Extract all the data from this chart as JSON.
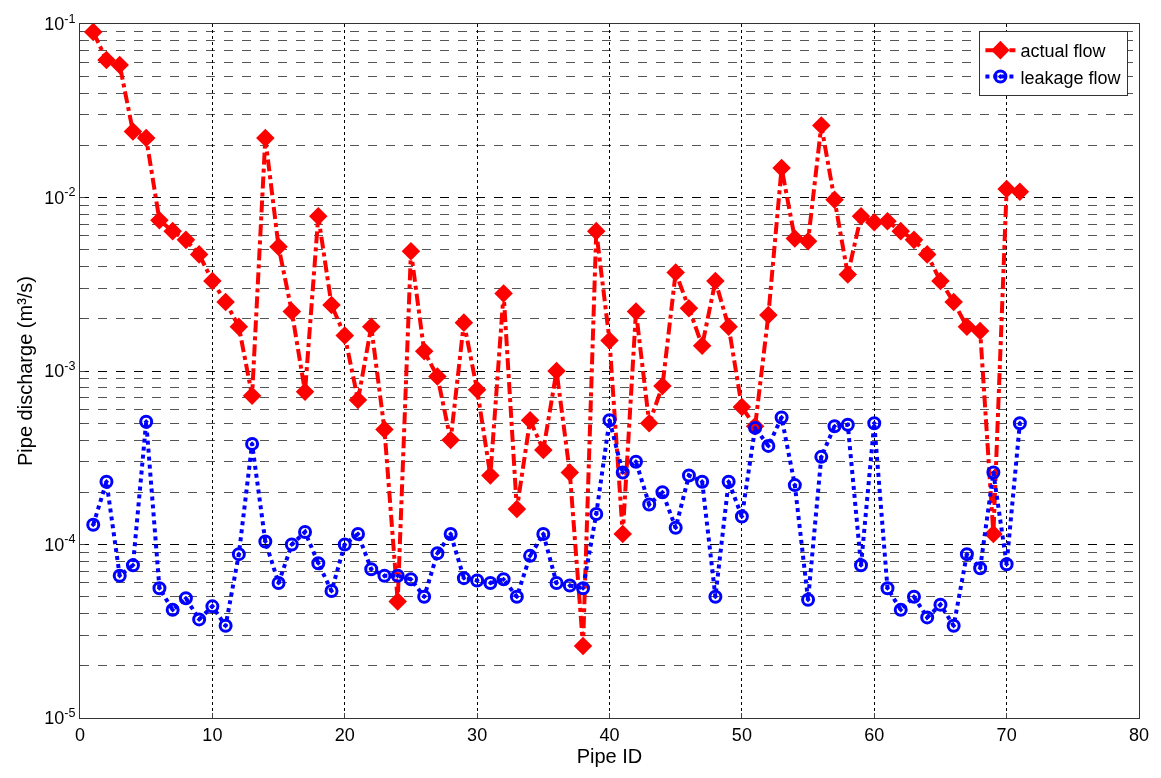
{
  "chart_data": {
    "type": "line",
    "xlabel": "Pipe ID",
    "ylabel": "Pipe discharge (m³/s)",
    "x": [
      1,
      2,
      3,
      4,
      5,
      6,
      7,
      8,
      9,
      10,
      11,
      12,
      13,
      14,
      15,
      16,
      17,
      18,
      19,
      20,
      21,
      22,
      23,
      24,
      25,
      26,
      27,
      28,
      29,
      30,
      31,
      32,
      33,
      34,
      35,
      36,
      37,
      38,
      39,
      40,
      41,
      42,
      43,
      44,
      45,
      46,
      47,
      48,
      49,
      50,
      51,
      52,
      53,
      54,
      55,
      56,
      57,
      58,
      59,
      60,
      61,
      62,
      63,
      64,
      65,
      66,
      67,
      68,
      69,
      70,
      71
    ],
    "series": [
      {
        "name": "actual flow",
        "color": "#ff0000",
        "marker": "diamond",
        "line_style": "dashed",
        "values": [
          0.09,
          0.062,
          0.058,
          0.024,
          0.022,
          0.0074,
          0.0064,
          0.0057,
          0.0047,
          0.0033,
          0.0025,
          0.0018,
          0.00072,
          0.022,
          0.0052,
          0.0022,
          0.00076,
          0.0078,
          0.0024,
          0.0016,
          0.00068,
          0.0018,
          0.00046,
          4.7e-05,
          0.0049,
          0.0013,
          0.00093,
          0.0004,
          0.0019,
          0.00078,
          0.00025,
          0.0028,
          0.00016,
          0.00052,
          0.00035,
          0.001,
          0.00026,
          2.6e-05,
          0.0064,
          0.0015,
          0.000115,
          0.0022,
          0.0005,
          0.00082,
          0.0037,
          0.0023,
          0.0014,
          0.0033,
          0.0018,
          0.00062,
          0.00048,
          0.0021,
          0.0148,
          0.0058,
          0.0056,
          0.026,
          0.0097,
          0.0036,
          0.0078,
          0.0072,
          0.0073,
          0.0064,
          0.0057,
          0.0047,
          0.0033,
          0.0025,
          0.0018,
          0.0017,
          0.000115,
          0.0112,
          0.0108
        ]
      },
      {
        "name": "leakage flow",
        "color": "#0000ff",
        "marker": "circle",
        "line_style": "dotted",
        "values": [
          0.00013,
          0.00023,
          6.6e-05,
          7.6e-05,
          0.00051,
          5.6e-05,
          4.2e-05,
          4.9e-05,
          3.7e-05,
          4.4e-05,
          3.4e-05,
          8.8e-05,
          0.00038,
          0.000104,
          6e-05,
          0.0001,
          0.000118,
          7.8e-05,
          5.4e-05,
          0.0001,
          0.000115,
          7.2e-05,
          6.6e-05,
          6.6e-05,
          6.3e-05,
          5e-05,
          8.9e-05,
          0.000115,
          6.4e-05,
          6.2e-05,
          6e-05,
          6.3e-05,
          5e-05,
          8.6e-05,
          0.000115,
          6e-05,
          5.8e-05,
          5.6e-05,
          0.00015,
          0.00052,
          0.00026,
          0.0003,
          0.00017,
          0.0002,
          0.000125,
          0.00025,
          0.00023,
          5e-05,
          0.00023,
          0.000145,
          0.00047,
          0.00037,
          0.00054,
          0.00022,
          4.8e-05,
          0.00032,
          0.00048,
          0.00049,
          7.6e-05,
          0.0005,
          5.6e-05,
          4.2e-05,
          5e-05,
          3.8e-05,
          4.5e-05,
          3.4e-05,
          8.8e-05,
          7.3e-05,
          0.00026,
          7.7e-05,
          0.0005
        ]
      }
    ],
    "xlim": [
      0,
      80
    ],
    "xticks": [
      0,
      10,
      20,
      30,
      40,
      50,
      60,
      70,
      80
    ],
    "ylim": [
      1e-05,
      0.1
    ],
    "yticks": [
      {
        "value": 1e-05,
        "label": "10$^{-5}$"
      },
      {
        "value": 0.0001,
        "label": "10$^{-4}$"
      },
      {
        "value": 0.001,
        "label": "10$^{-3}$"
      },
      {
        "value": 0.01,
        "label": "10$^{-2}$"
      },
      {
        "value": 0.1,
        "label": "10$^{-1}$"
      }
    ],
    "log": "y",
    "grid": true,
    "legend": "top right"
  }
}
